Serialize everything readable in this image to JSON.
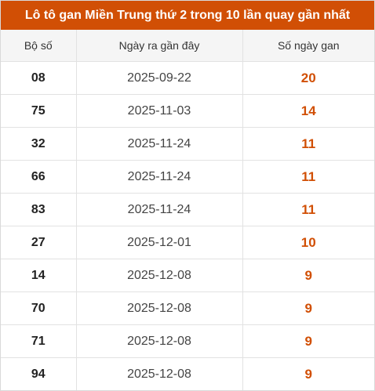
{
  "title": "Lô tô gan Miền Trung thứ 2 trong 10 lần quay gần nhất",
  "colors": {
    "accent": "#d14f05",
    "header_bg": "#f5f5f5"
  },
  "columns": [
    "Bộ số",
    "Ngày ra gần đây",
    "Số ngày gan"
  ],
  "rows": [
    {
      "number": "08",
      "date": "2025-09-22",
      "days": "20"
    },
    {
      "number": "75",
      "date": "2025-11-03",
      "days": "14"
    },
    {
      "number": "32",
      "date": "2025-11-24",
      "days": "11"
    },
    {
      "number": "66",
      "date": "2025-11-24",
      "days": "11"
    },
    {
      "number": "83",
      "date": "2025-11-24",
      "days": "11"
    },
    {
      "number": "27",
      "date": "2025-12-01",
      "days": "10"
    },
    {
      "number": "14",
      "date": "2025-12-08",
      "days": "9"
    },
    {
      "number": "70",
      "date": "2025-12-08",
      "days": "9"
    },
    {
      "number": "71",
      "date": "2025-12-08",
      "days": "9"
    },
    {
      "number": "94",
      "date": "2025-12-08",
      "days": "9"
    }
  ]
}
